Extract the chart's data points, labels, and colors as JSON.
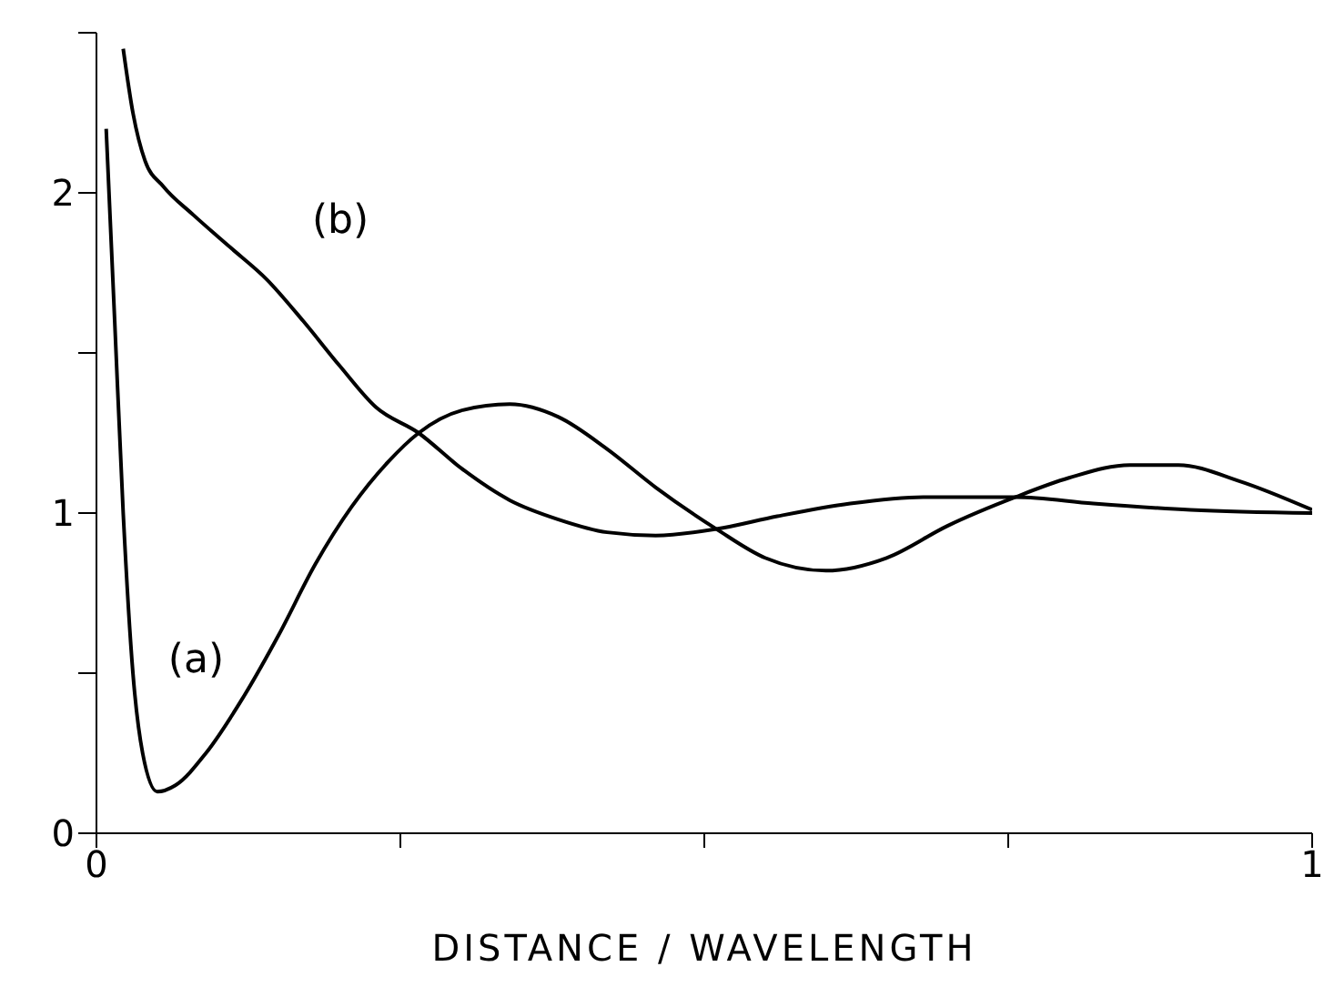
{
  "chart_data": {
    "type": "line",
    "xlabel": "DISTANCE / WAVELENGTH",
    "xlim": [
      0,
      1
    ],
    "xticks": [
      0,
      {
        "value": 0.25,
        "label": null
      },
      {
        "value": 0.5,
        "label": null
      },
      {
        "value": 0.75,
        "label": null
      },
      1
    ],
    "ylim": [
      0,
      2.5
    ],
    "yticks": [
      0,
      {
        "value": 0.5,
        "label": null
      },
      1,
      {
        "value": 1.5,
        "label": null
      },
      2,
      {
        "value": 2.5,
        "label": null
      }
    ],
    "grid": false,
    "legend": false,
    "marker": "none",
    "line_style": "solid",
    "series": [
      {
        "name": "(a)",
        "color": "#000000",
        "x": [
          0.008,
          0.015,
          0.022,
          0.03,
          0.038,
          0.05,
          0.065,
          0.09,
          0.12,
          0.15,
          0.18,
          0.21,
          0.24,
          0.265,
          0.3,
          0.34,
          0.38,
          0.42,
          0.46,
          0.51,
          0.55,
          0.6,
          0.65,
          0.7,
          0.756,
          0.8,
          0.85,
          0.89,
          0.94,
          1.0
        ],
        "values": [
          2.2,
          1.6,
          1.0,
          0.5,
          0.25,
          0.13,
          0.15,
          0.25,
          0.42,
          0.62,
          0.84,
          1.02,
          1.16,
          1.25,
          1.32,
          1.34,
          1.3,
          1.2,
          1.08,
          0.95,
          0.86,
          0.82,
          0.86,
          0.96,
          1.05,
          1.11,
          1.15,
          1.15,
          1.1,
          1.01
        ]
      },
      {
        "name": "(b)",
        "color": "#000000",
        "x": [
          0.022,
          0.03,
          0.04,
          0.055,
          0.08,
          0.11,
          0.14,
          0.17,
          0.2,
          0.23,
          0.265,
          0.3,
          0.34,
          0.38,
          0.42,
          0.46,
          0.51,
          0.56,
          0.62,
          0.68,
          0.756,
          0.82,
          0.9,
          1.0
        ],
        "values": [
          2.45,
          2.25,
          2.1,
          2.02,
          1.93,
          1.83,
          1.73,
          1.6,
          1.46,
          1.33,
          1.25,
          1.14,
          1.04,
          0.98,
          0.94,
          0.93,
          0.95,
          0.99,
          1.03,
          1.05,
          1.05,
          1.03,
          1.01,
          1.0
        ]
      }
    ]
  }
}
